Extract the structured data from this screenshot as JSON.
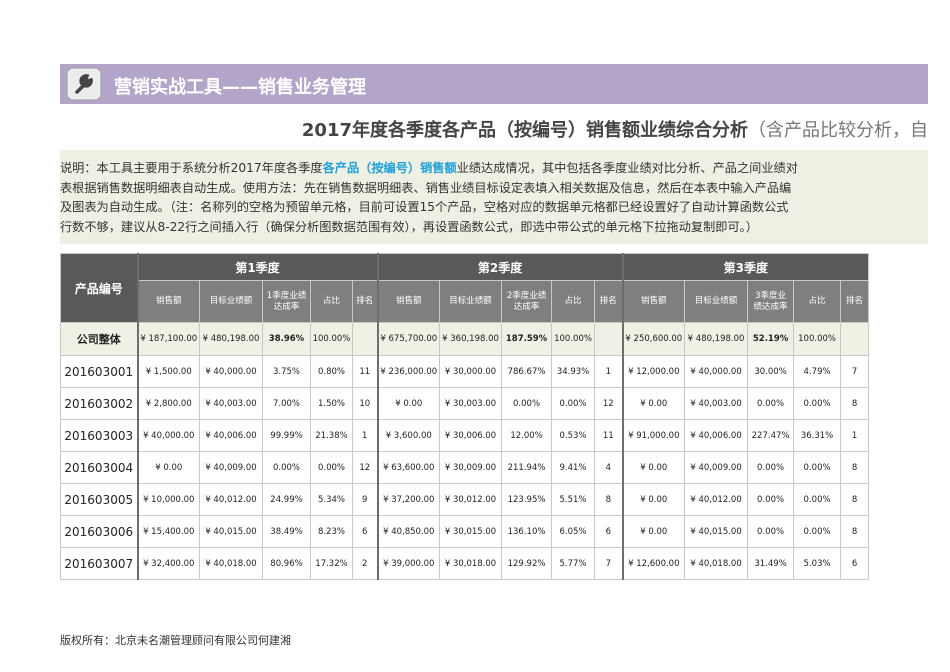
{
  "header": {
    "title": "营销实战工具——销售业务管理"
  },
  "subtitle": {
    "main": "2017年度各季度各产品（按编号）销售额业绩综合分析",
    "note": "（含产品比较分析，自"
  },
  "description": {
    "line1": {
      "before": "说明：本工具主要用于系统分析2017年度各季度",
      "highlight": "各产品（按编号）销售额",
      "after": "业绩达成情况，其中包括各季度业绩对比分析、产品之间业绩对"
    },
    "lines": [
      "表根据销售数据明细表自动生成。使用方法：先在销售数据明细表、销售业绩目标设定表填入相关数据及信息，然后在本表中输入产品编",
      "及图表为自动生成。（注：名称列的空格为预留单元格，目前可设置15个产品，空格对应的数据单元格都已经设置好了自动计算函数公式",
      "行数不够，建议从8-22行之间插入行（确保分析图数据范围有效），再设置函数公式，即选中带公式的单元格下拉拖动复制即可。）"
    ]
  },
  "table": {
    "product_header": "产品编号",
    "quarters": [
      {
        "name": "第1季度",
        "columns": [
          "销售额",
          "目标业绩额",
          "1季度业绩达成率",
          "占比",
          "排名"
        ]
      },
      {
        "name": "第2季度",
        "columns": [
          "销售额",
          "目标业绩额",
          "2季度业绩达成率",
          "占比",
          "排名"
        ]
      },
      {
        "name": "第3季度",
        "columns": [
          "销售额",
          "目标业绩额",
          "3季度业绩达成率",
          "占比",
          "排名"
        ]
      }
    ],
    "rows": [
      {
        "id": "公司整体",
        "quarters": [
          [
            "¥ 187,100.00",
            "¥ 480,198.00",
            "38.96%",
            "100.00%"
          ],
          [
            "¥ 675,700.00",
            "¥ 360,198.00",
            "187.59%",
            "100.00%"
          ],
          [
            "¥ 250,600.00",
            "¥ 480,198.00",
            "52.19%",
            "100.00%"
          ]
        ]
      },
      {
        "id": "201603001",
        "quarters": [
          [
            "¥ 1,500.00",
            "¥ 40,000.00",
            "3.75%",
            "0.80%",
            11
          ],
          [
            "¥ 236,000.00",
            "¥ 30,000.00",
            "786.67%",
            "34.93%",
            1
          ],
          [
            "¥ 12,000.00",
            "¥ 40,000.00",
            "30.00%",
            "4.79%",
            7
          ]
        ]
      },
      {
        "id": "201603002",
        "quarters": [
          [
            "¥ 2,800.00",
            "¥ 40,003.00",
            "7.00%",
            "1.50%",
            10
          ],
          [
            "¥ 0.00",
            "¥ 30,003.00",
            "0.00%",
            "0.00%",
            12
          ],
          [
            "¥ 0.00",
            "¥ 40,003.00",
            "0.00%",
            "0.00%",
            8
          ]
        ]
      },
      {
        "id": "201603003",
        "quarters": [
          [
            "¥ 40,000.00",
            "¥ 40,006.00",
            "99.99%",
            "21.38%",
            1
          ],
          [
            "¥ 3,600.00",
            "¥ 30,006.00",
            "12.00%",
            "0.53%",
            11
          ],
          [
            "¥ 91,000.00",
            "¥ 40,006.00",
            "227.47%",
            "36.31%",
            1
          ]
        ]
      },
      {
        "id": "201603004",
        "quarters": [
          [
            "¥ 0.00",
            "¥ 40,009.00",
            "0.00%",
            "0.00%",
            12
          ],
          [
            "¥ 63,600.00",
            "¥ 30,009.00",
            "211.94%",
            "9.41%",
            4
          ],
          [
            "¥ 0.00",
            "¥ 40,009.00",
            "0.00%",
            "0.00%",
            8
          ]
        ]
      },
      {
        "id": "201603005",
        "quarters": [
          [
            "¥ 10,000.00",
            "¥ 40,012.00",
            "24.99%",
            "5.34%",
            9
          ],
          [
            "¥ 37,200.00",
            "¥ 30,012.00",
            "123.95%",
            "5.51%",
            8
          ],
          [
            "¥ 0.00",
            "¥ 40,012.00",
            "0.00%",
            "0.00%",
            8
          ]
        ]
      },
      {
        "id": "201603006",
        "quarters": [
          [
            "¥ 15,400.00",
            "¥ 40,015.00",
            "38.49%",
            "8.23%",
            6
          ],
          [
            "¥ 40,850.00",
            "¥ 30,015.00",
            "136.10%",
            "6.05%",
            6
          ],
          [
            "¥ 0.00",
            "¥ 40,015.00",
            "0.00%",
            "0.00%",
            8
          ]
        ]
      },
      {
        "id": "201603007",
        "quarters": [
          [
            "¥ 32,400.00",
            "¥ 40,018.00",
            "80.96%",
            "17.32%",
            2
          ],
          [
            "¥ 39,000.00",
            "¥ 30,018.00",
            "129.92%",
            "5.77%",
            7
          ],
          [
            "¥ 12,600.00",
            "¥ 40,018.00",
            "31.49%",
            "5.03%",
            6
          ]
        ]
      }
    ]
  },
  "footer": "版权所有：北京未名潮管理顾问有限公司何建湘"
}
